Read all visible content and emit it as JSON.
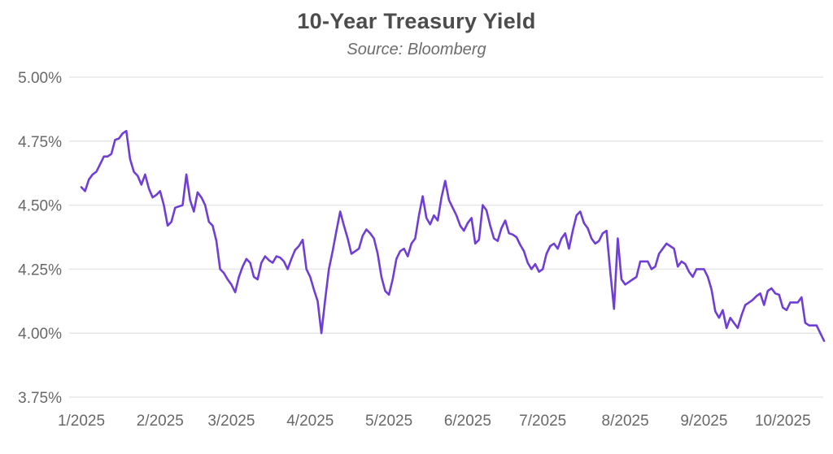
{
  "chart": {
    "line_color": "#6f3ed6",
    "grid_color": "#e7e7e7",
    "title_color": "#4c4c4c",
    "subtitle_color": "#6d6d6d",
    "tick_color": "#686868",
    "background": "#ffffff"
  },
  "chart_data": {
    "type": "line",
    "title": "10-Year Treasury Yield",
    "subtitle": "Source: Bloomberg",
    "xlabel": "",
    "ylabel": "",
    "ylim": [
      3.75,
      5.0
    ],
    "grid": "horizontal-only",
    "legend": "none",
    "y_ticks": [
      {
        "value": 5.0,
        "label": "5.00%"
      },
      {
        "value": 4.75,
        "label": "4.75%"
      },
      {
        "value": 4.5,
        "label": "4.50%"
      },
      {
        "value": 4.25,
        "label": "4.25%"
      },
      {
        "value": 4.0,
        "label": "4.00%"
      },
      {
        "value": 3.75,
        "label": "3.75%"
      }
    ],
    "x_ticks": [
      {
        "label": "1/2025",
        "index": 0
      },
      {
        "label": "2/2025",
        "index": 21
      },
      {
        "label": "3/2025",
        "index": 40
      },
      {
        "label": "4/2025",
        "index": 61
      },
      {
        "label": "5/2025",
        "index": 82
      },
      {
        "label": "6/2025",
        "index": 103
      },
      {
        "label": "7/2025",
        "index": 123
      },
      {
        "label": "8/2025",
        "index": 145
      },
      {
        "label": "9/2025",
        "index": 166
      },
      {
        "label": "10/2025",
        "index": 187
      }
    ],
    "series": [
      {
        "name": "10-Year Treasury Yield (%)",
        "dates": [
          "2025-01-02",
          "2025-01-03",
          "2025-01-06",
          "2025-01-07",
          "2025-01-08",
          "2025-01-09",
          "2025-01-10",
          "2025-01-13",
          "2025-01-14",
          "2025-01-15",
          "2025-01-16",
          "2025-01-17",
          "2025-01-21",
          "2025-01-22",
          "2025-01-23",
          "2025-01-24",
          "2025-01-27",
          "2025-01-28",
          "2025-01-29",
          "2025-01-30",
          "2025-01-31",
          "2025-02-03",
          "2025-02-04",
          "2025-02-05",
          "2025-02-06",
          "2025-02-07",
          "2025-02-10",
          "2025-02-11",
          "2025-02-12",
          "2025-02-13",
          "2025-02-14",
          "2025-02-18",
          "2025-02-19",
          "2025-02-20",
          "2025-02-21",
          "2025-02-24",
          "2025-02-25",
          "2025-02-26",
          "2025-02-27",
          "2025-02-28",
          "2025-03-03",
          "2025-03-04",
          "2025-03-05",
          "2025-03-06",
          "2025-03-07",
          "2025-03-10",
          "2025-03-11",
          "2025-03-12",
          "2025-03-13",
          "2025-03-14",
          "2025-03-17",
          "2025-03-18",
          "2025-03-19",
          "2025-03-20",
          "2025-03-21",
          "2025-03-24",
          "2025-03-25",
          "2025-03-26",
          "2025-03-27",
          "2025-03-28",
          "2025-03-31",
          "2025-04-01",
          "2025-04-02",
          "2025-04-03",
          "2025-04-04",
          "2025-04-07",
          "2025-04-08",
          "2025-04-09",
          "2025-04-10",
          "2025-04-11",
          "2025-04-14",
          "2025-04-15",
          "2025-04-16",
          "2025-04-17",
          "2025-04-21",
          "2025-04-22",
          "2025-04-23",
          "2025-04-24",
          "2025-04-25",
          "2025-04-28",
          "2025-04-29",
          "2025-04-30",
          "2025-05-01",
          "2025-05-02",
          "2025-05-05",
          "2025-05-06",
          "2025-05-07",
          "2025-05-08",
          "2025-05-09",
          "2025-05-12",
          "2025-05-13",
          "2025-05-14",
          "2025-05-15",
          "2025-05-16",
          "2025-05-19",
          "2025-05-20",
          "2025-05-21",
          "2025-05-22",
          "2025-05-23",
          "2025-05-27",
          "2025-05-28",
          "2025-05-29",
          "2025-05-30",
          "2025-06-02",
          "2025-06-03",
          "2025-06-04",
          "2025-06-05",
          "2025-06-06",
          "2025-06-09",
          "2025-06-10",
          "2025-06-11",
          "2025-06-12",
          "2025-06-13",
          "2025-06-16",
          "2025-06-17",
          "2025-06-18",
          "2025-06-20",
          "2025-06-23",
          "2025-06-24",
          "2025-06-25",
          "2025-06-26",
          "2025-06-27",
          "2025-06-30",
          "2025-07-01",
          "2025-07-02",
          "2025-07-03",
          "2025-07-07",
          "2025-07-08",
          "2025-07-09",
          "2025-07-10",
          "2025-07-11",
          "2025-07-14",
          "2025-07-15",
          "2025-07-16",
          "2025-07-17",
          "2025-07-18",
          "2025-07-21",
          "2025-07-22",
          "2025-07-23",
          "2025-07-24",
          "2025-07-25",
          "2025-07-28",
          "2025-07-29",
          "2025-07-30",
          "2025-07-31",
          "2025-08-01",
          "2025-08-04",
          "2025-08-05",
          "2025-08-06",
          "2025-08-07",
          "2025-08-08",
          "2025-08-11",
          "2025-08-12",
          "2025-08-13",
          "2025-08-14",
          "2025-08-15",
          "2025-08-18",
          "2025-08-19",
          "2025-08-20",
          "2025-08-21",
          "2025-08-22",
          "2025-08-25",
          "2025-08-26",
          "2025-08-27",
          "2025-08-28",
          "2025-08-29",
          "2025-09-02",
          "2025-09-03",
          "2025-09-04",
          "2025-09-05",
          "2025-09-08",
          "2025-09-09",
          "2025-09-10",
          "2025-09-11",
          "2025-09-12",
          "2025-09-15",
          "2025-09-16",
          "2025-09-17",
          "2025-09-18",
          "2025-09-19",
          "2025-09-22",
          "2025-09-23",
          "2025-09-24",
          "2025-09-25",
          "2025-09-26",
          "2025-09-29",
          "2025-09-30",
          "2025-10-01",
          "2025-10-02",
          "2025-10-03",
          "2025-10-06",
          "2025-10-07",
          "2025-10-08",
          "2025-10-09",
          "2025-10-10",
          "2025-10-13",
          "2025-10-14",
          "2025-10-15",
          "2025-10-16"
        ],
        "values": [
          4.57,
          4.555,
          4.6,
          4.62,
          4.63,
          4.66,
          4.69,
          4.69,
          4.7,
          4.755,
          4.76,
          4.78,
          4.79,
          4.68,
          4.63,
          4.615,
          4.58,
          4.62,
          4.565,
          4.53,
          4.54,
          4.555,
          4.5,
          4.42,
          4.435,
          4.49,
          4.495,
          4.5,
          4.62,
          4.52,
          4.475,
          4.55,
          4.53,
          4.5,
          4.435,
          4.42,
          4.36,
          4.25,
          4.235,
          4.21,
          4.19,
          4.16,
          4.22,
          4.26,
          4.29,
          4.275,
          4.22,
          4.21,
          4.275,
          4.3,
          4.285,
          4.275,
          4.3,
          4.295,
          4.28,
          4.25,
          4.29,
          4.325,
          4.34,
          4.365,
          4.25,
          4.22,
          4.17,
          4.125,
          4.0,
          4.13,
          4.25,
          4.32,
          4.4,
          4.475,
          4.42,
          4.37,
          4.31,
          4.32,
          4.33,
          4.38,
          4.405,
          4.39,
          4.37,
          4.31,
          4.22,
          4.165,
          4.15,
          4.21,
          4.29,
          4.32,
          4.33,
          4.3,
          4.35,
          4.37,
          4.46,
          4.535,
          4.45,
          4.425,
          4.46,
          4.44,
          4.53,
          4.595,
          4.52,
          4.49,
          4.46,
          4.42,
          4.4,
          4.43,
          4.45,
          4.35,
          4.365,
          4.5,
          4.48,
          4.42,
          4.37,
          4.36,
          4.41,
          4.44,
          4.39,
          4.385,
          4.375,
          4.345,
          4.32,
          4.275,
          4.25,
          4.27,
          4.24,
          4.25,
          4.31,
          4.34,
          4.35,
          4.33,
          4.37,
          4.39,
          4.33,
          4.4,
          4.46,
          4.475,
          4.43,
          4.41,
          4.37,
          4.35,
          4.36,
          4.39,
          4.4,
          4.24,
          4.095,
          4.37,
          4.21,
          4.19,
          4.2,
          4.21,
          4.22,
          4.28,
          4.28,
          4.28,
          4.25,
          4.26,
          4.31,
          4.33,
          4.35,
          4.34,
          4.33,
          4.26,
          4.28,
          4.27,
          4.24,
          4.22,
          4.25,
          4.25,
          4.25,
          4.22,
          4.17,
          4.085,
          4.06,
          4.09,
          4.02,
          4.06,
          4.04,
          4.02,
          4.07,
          4.11,
          4.12,
          4.13,
          4.145,
          4.155,
          4.11,
          4.165,
          4.175,
          4.155,
          4.15,
          4.1,
          4.09,
          4.12,
          4.12,
          4.12,
          4.14,
          4.04,
          4.03,
          4.03,
          4.03,
          4.0,
          3.97
        ]
      }
    ]
  }
}
